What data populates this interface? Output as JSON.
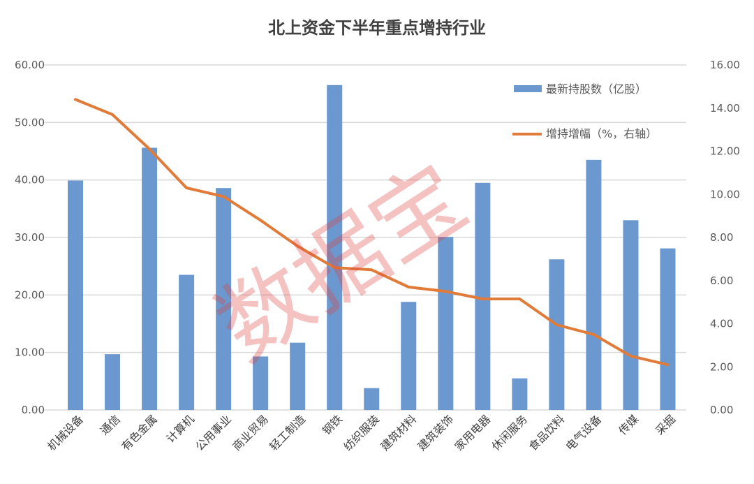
{
  "chart_data": {
    "type": "bar+line",
    "title": "北上资金下半年重点增持行业",
    "categories": [
      "机械设备",
      "通信",
      "有色金属",
      "计算机",
      "公用事业",
      "商业贸易",
      "轻工制造",
      "钢铁",
      "纺织服装",
      "建筑材料",
      "建筑装饰",
      "家用电器",
      "休闲服务",
      "食品饮料",
      "电气设备",
      "传媒",
      "采掘"
    ],
    "series": [
      {
        "name": "最新持股数（亿股）",
        "type": "bar",
        "axis": "left",
        "color": "#6a98cf",
        "values": [
          39.9,
          9.7,
          45.6,
          23.5,
          38.6,
          9.3,
          11.7,
          56.5,
          3.8,
          18.8,
          30.1,
          39.5,
          5.5,
          26.2,
          43.5,
          33.0,
          28.1
        ]
      },
      {
        "name": "增持增幅（%，右轴）",
        "type": "line",
        "axis": "right",
        "color": "#e07b39",
        "values": [
          14.4,
          13.7,
          12.1,
          10.3,
          9.9,
          8.8,
          7.6,
          6.6,
          6.5,
          5.7,
          5.5,
          5.15,
          5.15,
          3.95,
          3.5,
          2.5,
          2.1
        ]
      }
    ],
    "y_left": {
      "range": [
        0,
        60
      ],
      "ticks": [
        "0.00",
        "10.00",
        "20.00",
        "30.00",
        "40.00",
        "50.00",
        "60.00"
      ]
    },
    "y_right": {
      "range": [
        0,
        16
      ],
      "ticks": [
        "0.00",
        "2.00",
        "4.00",
        "6.00",
        "8.00",
        "10.00",
        "12.00",
        "14.00",
        "16.00"
      ]
    },
    "grid": true,
    "legend": "top-right"
  },
  "watermark": "数据宝"
}
